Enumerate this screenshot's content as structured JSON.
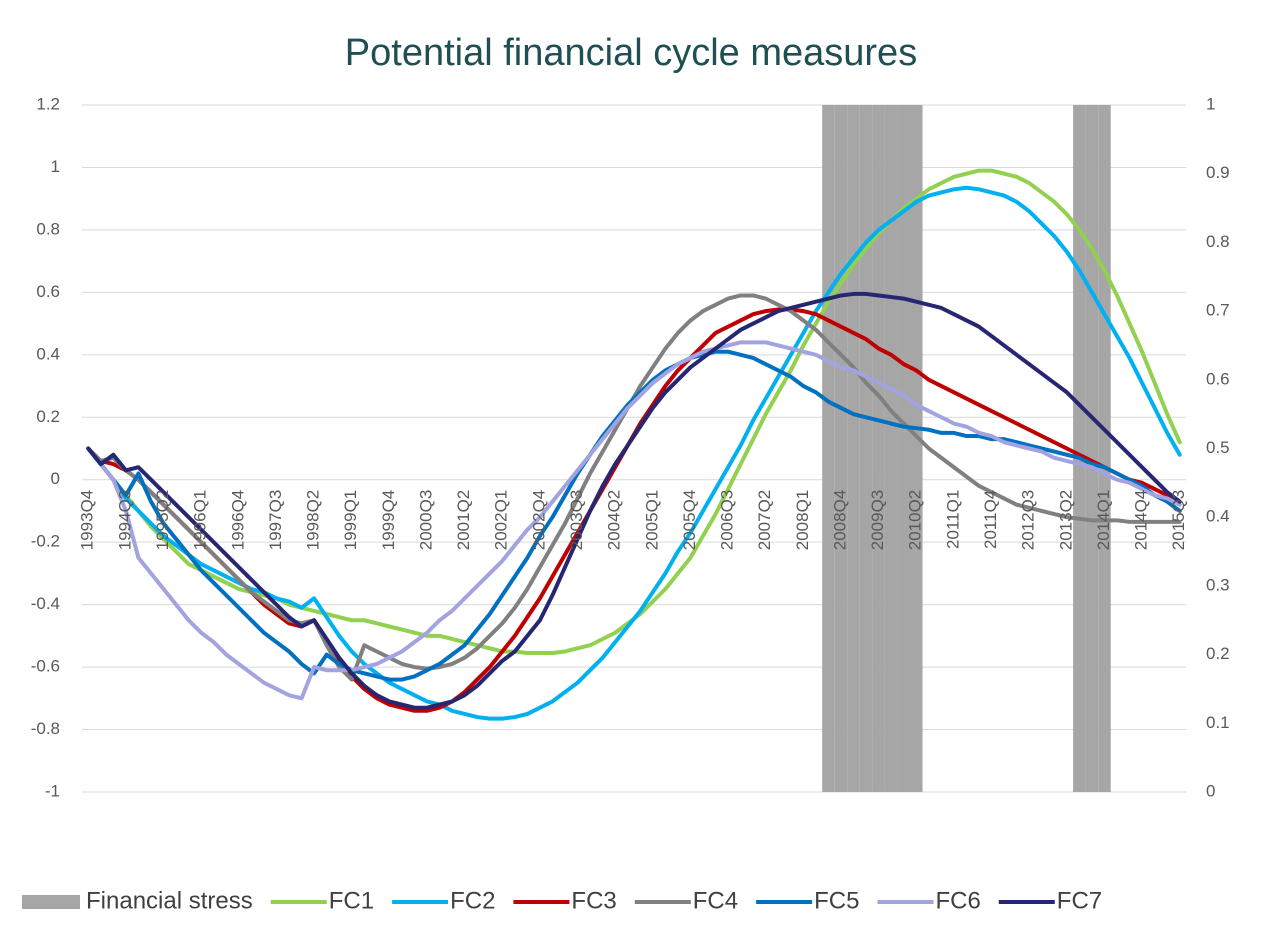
{
  "chart_data": {
    "type": "line",
    "title": "Potential financial cycle measures",
    "categories": [
      "1993Q4",
      null,
      null,
      "1994Q3",
      null,
      null,
      "1995Q2",
      null,
      null,
      "1996Q1",
      null,
      null,
      "1996Q4",
      null,
      null,
      "1997Q3",
      null,
      null,
      "1998Q2",
      null,
      null,
      "1999Q1",
      null,
      null,
      "1999Q4",
      null,
      null,
      "2000Q3",
      null,
      null,
      "2001Q2",
      null,
      null,
      "2002Q1",
      null,
      null,
      "2002Q4",
      null,
      null,
      "2003Q3",
      null,
      null,
      "2004Q2",
      null,
      null,
      "2005Q1",
      null,
      null,
      "2005Q4",
      null,
      null,
      "2006Q3",
      null,
      null,
      "2007Q2",
      null,
      null,
      "2008Q1",
      null,
      null,
      "2008Q4",
      null,
      null,
      "2009Q3",
      null,
      null,
      "2010Q2",
      null,
      null,
      "2011Q1",
      null,
      null,
      "2011Q4",
      null,
      null,
      "2012Q3",
      null,
      null,
      "2013Q2",
      null,
      null,
      "2014Q1",
      null,
      null,
      "2014Q4",
      null,
      null,
      "2015Q3"
    ],
    "ylim": [
      -1,
      1.2
    ],
    "yticks": [
      -1,
      -0.8,
      -0.6,
      -0.4,
      -0.2,
      0,
      0.2,
      0.4,
      0.6,
      0.8,
      1,
      1.2
    ],
    "y2lim": [
      0,
      1
    ],
    "y2ticks": [
      0,
      0.1,
      0.2,
      0.3,
      0.4,
      0.5,
      0.6,
      0.7,
      0.8,
      0.9,
      1
    ],
    "grid": true,
    "legend": "bottom",
    "series": [
      {
        "name": "Financial stress",
        "type": "bar",
        "axis": "y2",
        "color": "#a6a6a6",
        "values": [
          0,
          0,
          0,
          0,
          0,
          0,
          0,
          0,
          0,
          0,
          0,
          0,
          0,
          0,
          0,
          0,
          0,
          0,
          0,
          0,
          0,
          0,
          0,
          0,
          0,
          0,
          0,
          0,
          0,
          0,
          0,
          0,
          0,
          0,
          0,
          0,
          0,
          0,
          0,
          0,
          0,
          0,
          0,
          0,
          0,
          0,
          0,
          0,
          0,
          0,
          0,
          0,
          0,
          0,
          0,
          0,
          0,
          0,
          0,
          1,
          1,
          1,
          1,
          1,
          1,
          1,
          1,
          0,
          0,
          0,
          0,
          0,
          0,
          0,
          0,
          0,
          0,
          0,
          0,
          1,
          1,
          1,
          0,
          0,
          0,
          0,
          0,
          0
        ]
      },
      {
        "name": "FC1",
        "color": "#92d050",
        "values": [
          0.1,
          0.05,
          0,
          -0.05,
          -0.1,
          -0.15,
          -0.19,
          -0.23,
          -0.27,
          -0.29,
          -0.31,
          -0.33,
          -0.35,
          -0.36,
          -0.37,
          -0.38,
          -0.4,
          -0.41,
          -0.42,
          -0.43,
          -0.44,
          -0.45,
          -0.45,
          -0.46,
          -0.47,
          -0.48,
          -0.49,
          -0.5,
          -0.5,
          -0.51,
          -0.52,
          -0.53,
          -0.54,
          -0.55,
          -0.55,
          -0.555,
          -0.555,
          -0.555,
          -0.55,
          -0.54,
          -0.53,
          -0.51,
          -0.49,
          -0.46,
          -0.43,
          -0.39,
          -0.35,
          -0.3,
          -0.25,
          -0.18,
          -0.11,
          -0.03,
          0.05,
          0.13,
          0.21,
          0.28,
          0.35,
          0.43,
          0.5,
          0.57,
          0.63,
          0.69,
          0.74,
          0.79,
          0.83,
          0.87,
          0.9,
          0.93,
          0.95,
          0.97,
          0.98,
          0.99,
          0.99,
          0.98,
          0.97,
          0.95,
          0.92,
          0.89,
          0.85,
          0.8,
          0.74,
          0.67,
          0.59,
          0.5,
          0.41,
          0.31,
          0.21,
          0.12
        ]
      },
      {
        "name": "FC2",
        "color": "#00b0f0",
        "values": [
          0.1,
          0.05,
          0,
          -0.06,
          -0.1,
          -0.14,
          -0.18,
          -0.21,
          -0.24,
          -0.27,
          -0.29,
          -0.31,
          -0.33,
          -0.35,
          -0.36,
          -0.38,
          -0.39,
          -0.41,
          -0.38,
          -0.44,
          -0.5,
          -0.55,
          -0.59,
          -0.62,
          -0.65,
          -0.67,
          -0.69,
          -0.71,
          -0.72,
          -0.74,
          -0.75,
          -0.76,
          -0.765,
          -0.765,
          -0.76,
          -0.75,
          -0.73,
          -0.71,
          -0.68,
          -0.65,
          -0.61,
          -0.57,
          -0.52,
          -0.47,
          -0.42,
          -0.36,
          -0.3,
          -0.23,
          -0.17,
          -0.1,
          -0.03,
          0.04,
          0.11,
          0.19,
          0.26,
          0.33,
          0.4,
          0.47,
          0.54,
          0.6,
          0.66,
          0.71,
          0.76,
          0.8,
          0.83,
          0.86,
          0.89,
          0.91,
          0.92,
          0.93,
          0.935,
          0.93,
          0.92,
          0.91,
          0.89,
          0.86,
          0.82,
          0.78,
          0.73,
          0.67,
          0.6,
          0.53,
          0.46,
          0.39,
          0.31,
          0.23,
          0.15,
          0.08
        ]
      },
      {
        "name": "FC3",
        "color": "#c00000",
        "values": [
          0.1,
          0.06,
          0.05,
          0.03,
          0,
          -0.04,
          -0.08,
          -0.12,
          -0.16,
          -0.2,
          -0.24,
          -0.28,
          -0.32,
          -0.36,
          -0.4,
          -0.43,
          -0.46,
          -0.47,
          -0.45,
          -0.52,
          -0.58,
          -0.63,
          -0.67,
          -0.7,
          -0.72,
          -0.73,
          -0.74,
          -0.74,
          -0.73,
          -0.71,
          -0.68,
          -0.64,
          -0.6,
          -0.55,
          -0.5,
          -0.44,
          -0.38,
          -0.31,
          -0.24,
          -0.17,
          -0.1,
          -0.03,
          0.04,
          0.11,
          0.18,
          0.24,
          0.3,
          0.35,
          0.39,
          0.43,
          0.47,
          0.49,
          0.51,
          0.53,
          0.54,
          0.545,
          0.545,
          0.54,
          0.53,
          0.51,
          0.49,
          0.47,
          0.45,
          0.42,
          0.4,
          0.37,
          0.35,
          0.32,
          0.3,
          0.28,
          0.26,
          0.24,
          0.22,
          0.2,
          0.18,
          0.16,
          0.14,
          0.12,
          0.1,
          0.08,
          0.06,
          0.04,
          0.02,
          0,
          -0.01,
          -0.03,
          -0.05,
          -0.07
        ]
      },
      {
        "name": "FC4",
        "color": "#808080",
        "values": [
          0.1,
          0.06,
          0.07,
          0.03,
          0,
          -0.04,
          -0.08,
          -0.12,
          -0.16,
          -0.2,
          -0.24,
          -0.28,
          -0.32,
          -0.36,
          -0.39,
          -0.42,
          -0.45,
          -0.46,
          -0.45,
          -0.53,
          -0.6,
          -0.64,
          -0.53,
          -0.55,
          -0.57,
          -0.59,
          -0.6,
          -0.605,
          -0.6,
          -0.59,
          -0.57,
          -0.54,
          -0.5,
          -0.46,
          -0.41,
          -0.35,
          -0.28,
          -0.21,
          -0.14,
          -0.06,
          0.02,
          0.09,
          0.16,
          0.23,
          0.3,
          0.36,
          0.42,
          0.47,
          0.51,
          0.54,
          0.56,
          0.58,
          0.59,
          0.59,
          0.58,
          0.56,
          0.54,
          0.51,
          0.48,
          0.44,
          0.4,
          0.36,
          0.31,
          0.27,
          0.22,
          0.18,
          0.14,
          0.1,
          0.07,
          0.04,
          0.01,
          -0.02,
          -0.04,
          -0.06,
          -0.08,
          -0.09,
          -0.1,
          -0.11,
          -0.12,
          -0.125,
          -0.13,
          -0.13,
          -0.13,
          -0.135,
          -0.135,
          -0.135,
          -0.135,
          -0.135
        ]
      },
      {
        "name": "FC5",
        "color": "#0070c0",
        "values": [
          0.1,
          0.05,
          0,
          -0.05,
          0.02,
          -0.07,
          -0.14,
          -0.19,
          -0.24,
          -0.29,
          -0.33,
          -0.37,
          -0.41,
          -0.45,
          -0.49,
          -0.52,
          -0.55,
          -0.59,
          -0.62,
          -0.56,
          -0.59,
          -0.61,
          -0.62,
          -0.63,
          -0.64,
          -0.64,
          -0.63,
          -0.61,
          -0.59,
          -0.56,
          -0.53,
          -0.48,
          -0.43,
          -0.37,
          -0.31,
          -0.25,
          -0.18,
          -0.12,
          -0.05,
          0.02,
          0.08,
          0.14,
          0.19,
          0.24,
          0.28,
          0.32,
          0.35,
          0.37,
          0.39,
          0.4,
          0.41,
          0.41,
          0.4,
          0.39,
          0.37,
          0.35,
          0.33,
          0.3,
          0.28,
          0.25,
          0.23,
          0.21,
          0.2,
          0.19,
          0.18,
          0.17,
          0.165,
          0.16,
          0.15,
          0.15,
          0.14,
          0.14,
          0.13,
          0.13,
          0.12,
          0.11,
          0.1,
          0.09,
          0.08,
          0.07,
          0.05,
          0.04,
          0.02,
          0,
          -0.02,
          -0.05,
          -0.07,
          -0.1
        ]
      },
      {
        "name": "FC6",
        "color": "#a3a3e0",
        "values": [
          0.1,
          0.05,
          0,
          -0.1,
          -0.25,
          -0.3,
          -0.35,
          -0.4,
          -0.45,
          -0.49,
          -0.52,
          -0.56,
          -0.59,
          -0.62,
          -0.65,
          -0.67,
          -0.69,
          -0.7,
          -0.6,
          -0.61,
          -0.61,
          -0.61,
          -0.6,
          -0.59,
          -0.57,
          -0.55,
          -0.52,
          -0.49,
          -0.45,
          -0.42,
          -0.38,
          -0.34,
          -0.3,
          -0.26,
          -0.21,
          -0.16,
          -0.12,
          -0.07,
          -0.02,
          0.03,
          0.08,
          0.13,
          0.18,
          0.23,
          0.27,
          0.31,
          0.34,
          0.37,
          0.39,
          0.41,
          0.42,
          0.43,
          0.44,
          0.44,
          0.44,
          0.43,
          0.42,
          0.41,
          0.4,
          0.38,
          0.36,
          0.35,
          0.33,
          0.31,
          0.29,
          0.27,
          0.24,
          0.22,
          0.2,
          0.18,
          0.17,
          0.15,
          0.14,
          0.12,
          0.11,
          0.1,
          0.09,
          0.07,
          0.06,
          0.05,
          0.04,
          0.02,
          0,
          -0.01,
          -0.03,
          -0.05,
          -0.06,
          -0.08
        ]
      },
      {
        "name": "FC7",
        "color": "#262673",
        "values": [
          0.1,
          0.05,
          0.08,
          0.03,
          0.04,
          0,
          -0.04,
          -0.08,
          -0.12,
          -0.16,
          -0.2,
          -0.24,
          -0.28,
          -0.32,
          -0.36,
          -0.4,
          -0.44,
          -0.47,
          -0.45,
          -0.51,
          -0.57,
          -0.62,
          -0.66,
          -0.69,
          -0.71,
          -0.72,
          -0.73,
          -0.73,
          -0.72,
          -0.71,
          -0.69,
          -0.66,
          -0.62,
          -0.58,
          -0.55,
          -0.5,
          -0.45,
          -0.37,
          -0.28,
          -0.19,
          -0.1,
          -0.02,
          0.05,
          0.11,
          0.17,
          0.23,
          0.28,
          0.32,
          0.36,
          0.39,
          0.42,
          0.45,
          0.48,
          0.5,
          0.52,
          0.54,
          0.55,
          0.56,
          0.57,
          0.58,
          0.59,
          0.595,
          0.595,
          0.59,
          0.585,
          0.58,
          0.57,
          0.56,
          0.55,
          0.53,
          0.51,
          0.49,
          0.46,
          0.43,
          0.4,
          0.37,
          0.34,
          0.31,
          0.28,
          0.24,
          0.2,
          0.16,
          0.12,
          0.08,
          0.04,
          0,
          -0.04,
          -0.07
        ]
      }
    ]
  }
}
